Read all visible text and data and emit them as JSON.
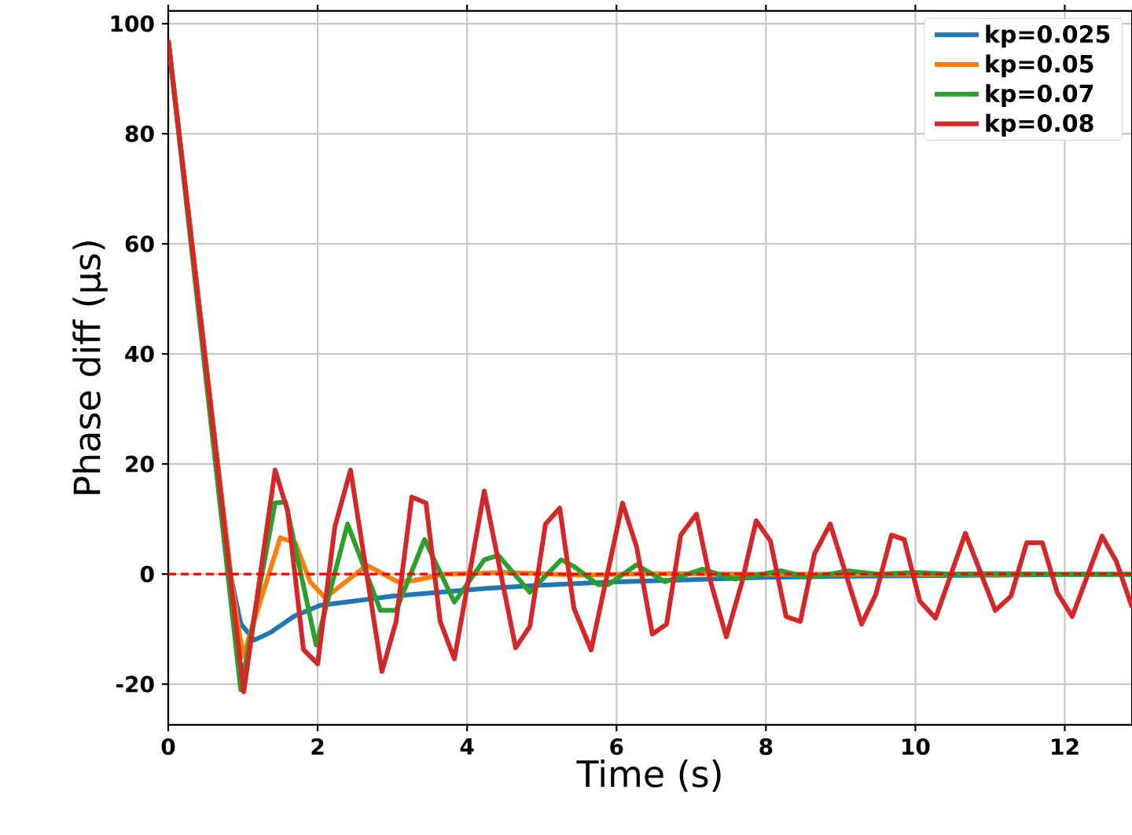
{
  "chart_data": {
    "type": "line",
    "xlabel": "Time (s)",
    "ylabel": "Phase diff (µs)",
    "xlim": [
      0,
      12.9
    ],
    "ylim": [
      -27.4,
      102.3
    ],
    "xticks": [
      0,
      2,
      4,
      6,
      8,
      10,
      12
    ],
    "yticks": [
      -20,
      0,
      20,
      40,
      60,
      80,
      100
    ],
    "grid": true,
    "legend": "top right",
    "line_style": "solid",
    "ref_lines": [
      {
        "axis": "y",
        "value": 0,
        "color": "#ff0000",
        "line_style": "dashed"
      }
    ],
    "series": [
      {
        "name": "kp=0.025",
        "color": "#1f77b4",
        "x": [
          0,
          0.84,
          0.97,
          1.15,
          1.37,
          1.68,
          2.03,
          3,
          4.27,
          5,
          6,
          7,
          8,
          9,
          10,
          11,
          12,
          12.9
        ],
        "values": [
          97,
          -0.6,
          -9,
          -12,
          -10.6,
          -7.7,
          -5.7,
          -4,
          -2.6,
          -2,
          -1.4,
          -1,
          -0.6,
          -0.4,
          -0.3,
          -0.2,
          -0.1,
          -0.1
        ]
      },
      {
        "name": "kp=0.05",
        "color": "#ff7f0e",
        "x": [
          0,
          0.84,
          1.0,
          1.5,
          1.7,
          1.9,
          2.1,
          2.45,
          2.66,
          3.07,
          3.28,
          3.7,
          4.5,
          5.5,
          6.5,
          8,
          10,
          12.9
        ],
        "values": [
          97,
          -0.6,
          -15,
          6.6,
          5.7,
          -1.4,
          -4.3,
          -0.6,
          1.6,
          -1.4,
          -1.2,
          0,
          0.3,
          -0.2,
          0.1,
          0,
          0,
          0
        ]
      },
      {
        "name": "kp=0.07",
        "color": "#2ca02c",
        "x": [
          0,
          0.97,
          1.43,
          1.57,
          1.98,
          2.4,
          2.84,
          3.05,
          3.43,
          3.83,
          4.23,
          4.42,
          4.84,
          5.26,
          5.43,
          5.75,
          5.89,
          6.27,
          6.65,
          7.15,
          7.58,
          8.2,
          8.55,
          8.86,
          9.1,
          9.5,
          10,
          10.5,
          11,
          12,
          12.9
        ],
        "values": [
          97,
          -21,
          12.9,
          13.1,
          -12.9,
          9.1,
          -6.6,
          -6.6,
          6.3,
          -5.1,
          2.6,
          3.4,
          -3.3,
          2.6,
          1.4,
          -1.9,
          -1.9,
          1.7,
          -1.4,
          0.9,
          -0.9,
          0.6,
          -0.6,
          0,
          0.6,
          0,
          0.3,
          0,
          0.1,
          0,
          0
        ]
      },
      {
        "name": "kp=0.08",
        "color": "#d62728",
        "x": [
          0,
          1.01,
          1.43,
          1.6,
          1.81,
          2.0,
          2.23,
          2.44,
          2.86,
          3.05,
          3.26,
          3.45,
          3.64,
          3.83,
          4.23,
          4.65,
          4.84,
          5.05,
          5.24,
          5.43,
          5.66,
          6.08,
          6.27,
          6.48,
          6.67,
          6.86,
          7.07,
          7.26,
          7.47,
          7.68,
          7.87,
          8.06,
          8.27,
          8.46,
          8.65,
          8.86,
          9.28,
          9.47,
          9.68,
          9.85,
          10.06,
          10.27,
          10.67,
          11.07,
          11.28,
          11.49,
          11.7,
          11.9,
          12.1,
          12.5,
          12.69,
          12.9
        ],
        "values": [
          97,
          -21.4,
          18.9,
          11.4,
          -13.7,
          -16.3,
          8.6,
          18.9,
          -17.7,
          -8.6,
          14,
          12.9,
          -8.6,
          -15.4,
          15.1,
          -13.4,
          -9.5,
          9.1,
          12,
          -6.2,
          -13.8,
          12.9,
          4.9,
          -10.9,
          -9.1,
          7.1,
          10.9,
          -1.4,
          -11.4,
          -1.4,
          9.7,
          6,
          -7.7,
          -8.6,
          3.7,
          9.1,
          -9.1,
          -3.7,
          7.1,
          6.3,
          -4.9,
          -8,
          7.4,
          -6.6,
          -4,
          5.7,
          5.7,
          -3.4,
          -7.7,
          6.9,
          2.3,
          -6
        ]
      }
    ]
  }
}
